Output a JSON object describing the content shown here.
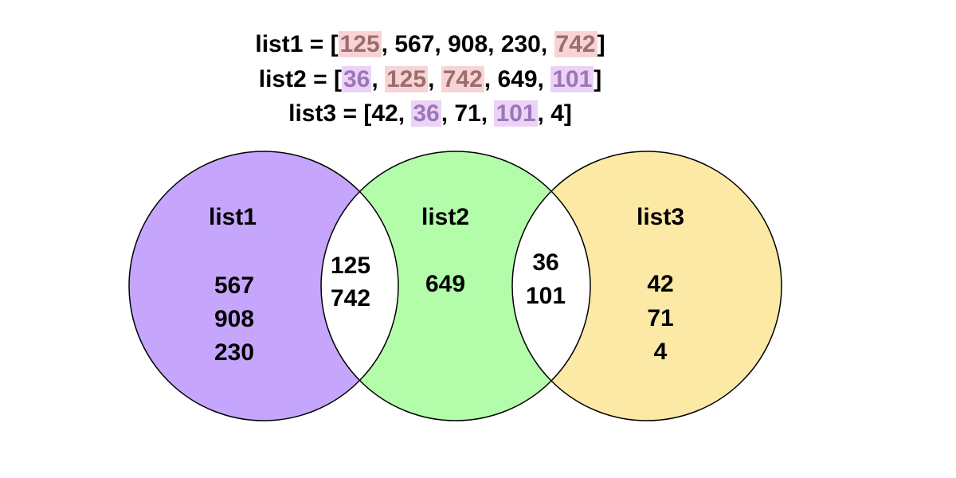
{
  "lists": {
    "list1": {
      "name": "list1",
      "items": [
        "125",
        "567",
        "908",
        "230",
        "742"
      ],
      "highlights": [
        "red",
        "none",
        "none",
        "none",
        "red"
      ]
    },
    "list2": {
      "name": "list2",
      "items": [
        "36",
        "125",
        "742",
        "649",
        "101"
      ],
      "highlights": [
        "purple",
        "red",
        "red",
        "none",
        "purple"
      ]
    },
    "list3": {
      "name": "list3",
      "items": [
        "42",
        "36",
        "71",
        "101",
        "4"
      ],
      "highlights": [
        "none",
        "purple",
        "none",
        "purple",
        "none"
      ]
    }
  },
  "venn": {
    "circles": [
      {
        "label": "list1",
        "color": "#c6a6fc",
        "values": [
          "567",
          "908",
          "230"
        ]
      },
      {
        "label": "list2",
        "color": "#b3fdaa",
        "values": [
          "649"
        ]
      },
      {
        "label": "list3",
        "color": "#fde9a6",
        "values": [
          "42",
          "71",
          "4"
        ]
      }
    ],
    "intersections": [
      {
        "between": [
          "list1",
          "list2"
        ],
        "values": [
          "125",
          "742"
        ]
      },
      {
        "between": [
          "list2",
          "list3"
        ],
        "values": [
          "36",
          "101"
        ]
      }
    ]
  },
  "colors": {
    "highlight_red_bg": "#f8d3d6",
    "highlight_red_text": "#9b6e6e",
    "highlight_purple_bg": "#ecd3f6",
    "highlight_purple_text": "#9b77b9",
    "outline": "#000000"
  }
}
